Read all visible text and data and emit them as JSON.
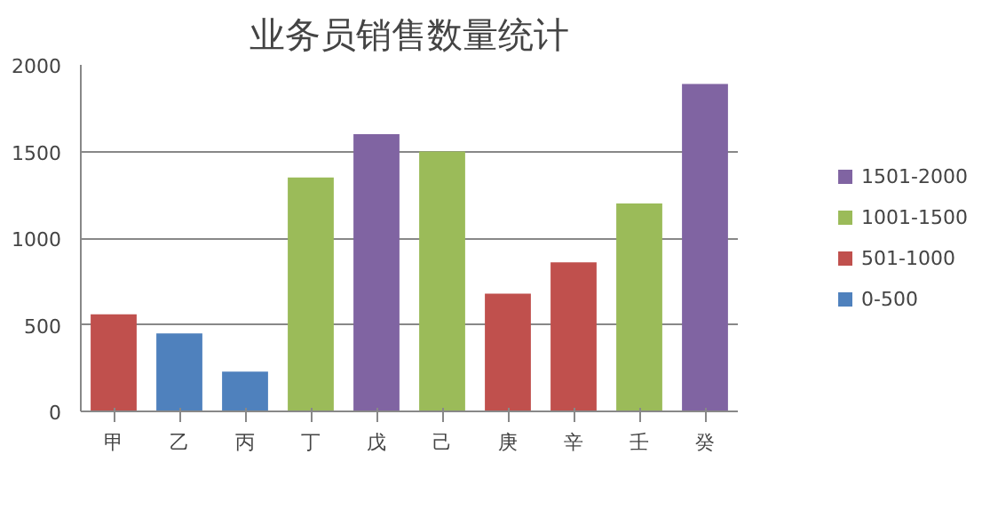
{
  "chart_data": {
    "type": "bar",
    "title": "业务员销售数量统计",
    "categories": [
      "甲",
      "乙",
      "丙",
      "丁",
      "戊",
      "己",
      "庚",
      "辛",
      "壬",
      "癸"
    ],
    "series": [
      {
        "name": "1501-2000",
        "color": "#8064a2",
        "values": [
          null,
          null,
          null,
          null,
          1600,
          null,
          null,
          null,
          null,
          1890
        ]
      },
      {
        "name": "1001-1500",
        "color": "#9bbb59",
        "values": [
          null,
          null,
          null,
          1350,
          null,
          1500,
          null,
          null,
          1200,
          null
        ]
      },
      {
        "name": "501-1000",
        "color": "#c0504d",
        "values": [
          560,
          null,
          null,
          null,
          null,
          null,
          680,
          860,
          null,
          null
        ]
      },
      {
        "name": "0-500",
        "color": "#4f81bd",
        "values": [
          null,
          450,
          230,
          null,
          null,
          null,
          null,
          null,
          null,
          null
        ]
      }
    ],
    "ylim": [
      0,
      2000
    ],
    "yticks": [
      0,
      500,
      1000,
      1500,
      2000
    ],
    "grid": "y",
    "legend": "right"
  }
}
